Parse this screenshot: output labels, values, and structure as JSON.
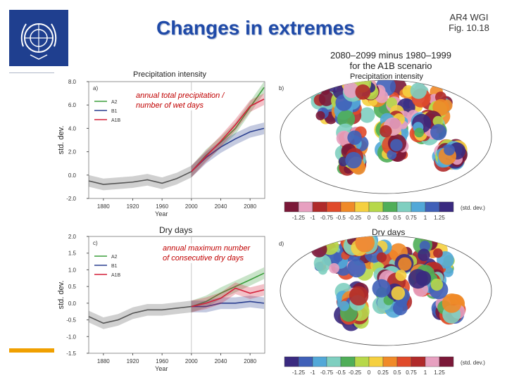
{
  "slide": {
    "title": "Changes in extremes",
    "reference_line1": "AR4 WGI",
    "reference_line2": "Fig. 10.18",
    "period_line1": "2080–2099 minus 1980–1999",
    "period_line2": "for the A1B scenario"
  },
  "colors": {
    "A2": "#3c9e3c",
    "B1": "#2a3f8f",
    "A1B": "#d4203a",
    "title": "#1f4aa8",
    "logo": "#1f3f8f",
    "accent": "#f0a000"
  },
  "annotations": {
    "a": "annual total precipitation / number of wet days",
    "c": "annual maximum number of consecutive dry days"
  },
  "chart_data": [
    {
      "type": "line",
      "panel_letter": "a)",
      "title": "Precipitation intensity",
      "xlabel": "Year",
      "ylabel": "std. dev.",
      "xlim": [
        1860,
        2100
      ],
      "ylim": [
        -2.0,
        8.0
      ],
      "x_ticks": [
        "1880",
        "1920",
        "1960",
        "2000",
        "2040",
        "2080"
      ],
      "y_ticks": [
        "-2.0",
        "0.0",
        "2.0",
        "4.0",
        "6.0",
        "8.0"
      ],
      "legend": [
        "A2",
        "B1",
        "A1B"
      ],
      "x": [
        1860,
        1880,
        1900,
        1920,
        1940,
        1960,
        1980,
        2000,
        2020,
        2040,
        2060,
        2080,
        2099
      ],
      "series": [
        {
          "name": "historical",
          "values": [
            -0.5,
            -0.8,
            -0.7,
            -0.6,
            -0.4,
            -0.7,
            -0.3,
            0.3,
            null,
            null,
            null,
            null,
            null
          ]
        },
        {
          "name": "A2",
          "values": [
            null,
            null,
            null,
            null,
            null,
            null,
            null,
            0.3,
            1.7,
            2.8,
            4.0,
            5.8,
            7.5
          ]
        },
        {
          "name": "B1",
          "values": [
            null,
            null,
            null,
            null,
            null,
            null,
            null,
            0.3,
            1.5,
            2.4,
            3.1,
            3.7,
            4.0
          ]
        },
        {
          "name": "A1B",
          "values": [
            null,
            null,
            null,
            null,
            null,
            null,
            null,
            0.3,
            1.6,
            2.9,
            4.3,
            5.9,
            6.5
          ]
        }
      ]
    },
    {
      "type": "line",
      "panel_letter": "c)",
      "title": "Dry days",
      "xlabel": "Year",
      "ylabel": "std. dev.",
      "xlim": [
        1860,
        2100
      ],
      "ylim": [
        -1.5,
        2.0
      ],
      "x_ticks": [
        "1880",
        "1920",
        "1960",
        "2000",
        "2040",
        "2080"
      ],
      "y_ticks": [
        "-1.5",
        "-1.0",
        "-0.5",
        "0.0",
        "0.5",
        "1.0",
        "1.5",
        "2.0"
      ],
      "legend": [
        "A2",
        "B1",
        "A1B"
      ],
      "x": [
        1860,
        1880,
        1900,
        1920,
        1940,
        1960,
        1980,
        2000,
        2020,
        2040,
        2060,
        2080,
        2099
      ],
      "series": [
        {
          "name": "historical",
          "values": [
            -0.4,
            -0.6,
            -0.5,
            -0.3,
            -0.2,
            -0.2,
            -0.15,
            -0.1,
            null,
            null,
            null,
            null,
            null
          ]
        },
        {
          "name": "A2",
          "values": [
            null,
            null,
            null,
            null,
            null,
            null,
            null,
            -0.1,
            0.05,
            0.3,
            0.5,
            0.7,
            0.9
          ]
        },
        {
          "name": "B1",
          "values": [
            null,
            null,
            null,
            null,
            null,
            null,
            null,
            -0.1,
            -0.1,
            0.0,
            0.0,
            0.05,
            0.0
          ]
        },
        {
          "name": "A1B",
          "values": [
            null,
            null,
            null,
            null,
            null,
            null,
            null,
            -0.1,
            0.0,
            0.15,
            0.45,
            0.3,
            0.4
          ]
        }
      ]
    },
    {
      "type": "heatmap",
      "panel_letter": "b)",
      "title": "Precipitation intensity",
      "colorbar_unit": "(std. dev.)",
      "colorbar_labels": [
        "-1.25",
        "-1",
        "-0.75",
        "-0.5",
        "-0.25",
        "0",
        "0.25",
        "0.5",
        "0.75",
        "1",
        "1.25"
      ],
      "colorbar_colors": [
        "#7b1838",
        "#e7a0c0",
        "#b02a2a",
        "#e04a2a",
        "#f08a28",
        "#f5d040",
        "#b7d84a",
        "#4fae58",
        "#7fcfc0",
        "#52a8d8",
        "#4060b8",
        "#3a2a80"
      ]
    },
    {
      "type": "heatmap",
      "panel_letter": "d)",
      "title": "Dry days",
      "colorbar_unit": "(std. dev.)",
      "colorbar_labels": [
        "-1.25",
        "-1",
        "-0.75",
        "-0.5",
        "-0.25",
        "0",
        "0.25",
        "0.5",
        "0.75",
        "1",
        "1.25"
      ],
      "colorbar_colors": [
        "#3a2a80",
        "#4060b8",
        "#52a8d8",
        "#7fcfc0",
        "#4fae58",
        "#b7d84a",
        "#f5d040",
        "#f08a28",
        "#e04a2a",
        "#b02a2a",
        "#e7a0c0",
        "#7b1838"
      ]
    }
  ]
}
